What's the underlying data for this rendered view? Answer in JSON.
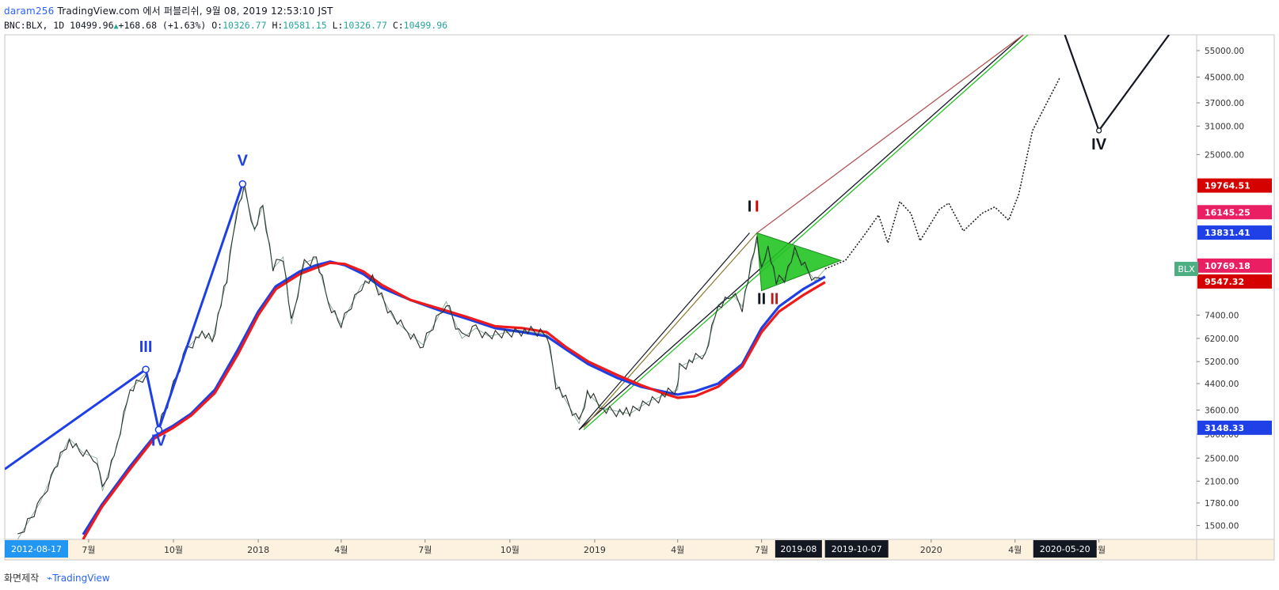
{
  "header": {
    "user": "daram256",
    "line1": "TradingView.com 에서 퍼블리쉬, 9월 08, 2019 12:53:10 JST",
    "symbol": "BNC:BLX, 1D",
    "last": "10499.96",
    "change": "+168.68 (+1.63%)",
    "o_label": "O:",
    "o": "10326.77",
    "h_label": "H:",
    "h": "10581.15",
    "l_label": "L:",
    "l": "10326.77",
    "c_label": "C:",
    "c": "10499.96"
  },
  "footer": {
    "made_with": "화면제작",
    "brand": "TradingView"
  },
  "colors": {
    "ma_red": "#ef1a1a",
    "ma_blue": "#1f3fe6",
    "wave_blue": "#1f3fe6",
    "triangle_green": "#22c422",
    "label_blue": "#1e40e6",
    "label_red": "#d50000",
    "label_pink": "#e91e63",
    "label_green": "#4caf83",
    "label_black": "#131722",
    "date_label_blue": "#2196f3"
  },
  "chart_data": {
    "type": "line",
    "title": "",
    "symbol": "BNC:BLX",
    "interval": "1D",
    "y_scale": "log",
    "ylim": [
      1350,
      62000
    ],
    "x_range": [
      "2017-04-01",
      "2020-10-15"
    ],
    "y_ticks": [
      "55000.00",
      "45000.00",
      "37000.00",
      "31000.00",
      "25000.00",
      "7400.00",
      "6200.00",
      "5200.00",
      "4400.00",
      "3600.00",
      "3000.00",
      "2500.00",
      "2100.00",
      "1780.00",
      "1500.00"
    ],
    "x_ticks": [
      {
        "date": "2017-07-01",
        "label": "7월"
      },
      {
        "date": "2017-10-01",
        "label": "10월"
      },
      {
        "date": "2018-01-01",
        "label": "2018"
      },
      {
        "date": "2018-04-01",
        "label": "4월"
      },
      {
        "date": "2018-07-01",
        "label": "7월"
      },
      {
        "date": "2018-10-01",
        "label": "10월"
      },
      {
        "date": "2019-01-01",
        "label": "2019"
      },
      {
        "date": "2019-04-01",
        "label": "4월"
      },
      {
        "date": "2019-07-01",
        "label": "7월"
      },
      {
        "date": "2020-01-01",
        "label": "2020"
      },
      {
        "date": "2020-04-01",
        "label": "4월"
      },
      {
        "date": "2020-07-01",
        "label": "7월"
      }
    ],
    "date_labels": [
      {
        "date": "2017-04-01",
        "text": "2012-08-17",
        "style": "blue"
      },
      {
        "date": "2019-08-05",
        "text": "2019-08",
        "style": "black"
      },
      {
        "date": "2019-10-07",
        "text": "2019-10-07",
        "style": "black"
      },
      {
        "date": "2020-05-20",
        "text": "2020-05-20",
        "style": "black"
      }
    ],
    "price_labels": [
      {
        "value": 19764.51,
        "text": "19764.51",
        "color": "#d50000"
      },
      {
        "value": 16145.25,
        "text": "16145.25",
        "color": "#e91e63"
      },
      {
        "value": 13831.41,
        "text": "13831.41",
        "color": "#1e40e6"
      },
      {
        "value": 10769.18,
        "text": "10769.18",
        "color": "#e91e63"
      },
      {
        "value": 9547.32,
        "text": "9547.32",
        "color": "#d50000"
      },
      {
        "value": 3148.33,
        "text": "3148.33",
        "color": "#1e40e6"
      }
    ],
    "symbol_tag": {
      "text": "BLX",
      "value": 10499.96
    },
    "price_series": [
      [
        "2017-04-15",
        1350
      ],
      [
        "2017-05-10",
        1800
      ],
      [
        "2017-05-25",
        2300
      ],
      [
        "2017-06-10",
        2900
      ],
      [
        "2017-06-25",
        2600
      ],
      [
        "2017-07-10",
        2500
      ],
      [
        "2017-07-16",
        1950
      ],
      [
        "2017-08-01",
        2750
      ],
      [
        "2017-08-15",
        4200
      ],
      [
        "2017-09-01",
        4750
      ],
      [
        "2017-09-15",
        3200
      ],
      [
        "2017-10-01",
        4300
      ],
      [
        "2017-10-15",
        5700
      ],
      [
        "2017-11-01",
        6500
      ],
      [
        "2017-11-12",
        6100
      ],
      [
        "2017-11-28",
        9700
      ],
      [
        "2017-12-08",
        16000
      ],
      [
        "2017-12-17",
        19400
      ],
      [
        "2017-12-28",
        14000
      ],
      [
        "2018-01-06",
        17000
      ],
      [
        "2018-01-17",
        10500
      ],
      [
        "2018-01-28",
        11500
      ],
      [
        "2018-02-06",
        6900
      ],
      [
        "2018-02-20",
        11000
      ],
      [
        "2018-03-05",
        11400
      ],
      [
        "2018-03-18",
        8200
      ],
      [
        "2018-04-01",
        6900
      ],
      [
        "2018-04-23",
        9300
      ],
      [
        "2018-05-05",
        9700
      ],
      [
        "2018-05-28",
        7200
      ],
      [
        "2018-06-12",
        6500
      ],
      [
        "2018-06-29",
        5900
      ],
      [
        "2018-07-24",
        8200
      ],
      [
        "2018-08-10",
        6200
      ],
      [
        "2018-08-25",
        6700
      ],
      [
        "2018-09-08",
        6300
      ],
      [
        "2018-10-10",
        6600
      ],
      [
        "2018-11-10",
        6400
      ],
      [
        "2018-11-20",
        4400
      ],
      [
        "2018-12-15",
        3250
      ],
      [
        "2018-12-24",
        4100
      ],
      [
        "2019-01-10",
        3650
      ],
      [
        "2019-02-08",
        3500
      ],
      [
        "2019-03-01",
        3850
      ],
      [
        "2019-04-01",
        4200
      ],
      [
        "2019-04-03",
        5000
      ],
      [
        "2019-05-01",
        5500
      ],
      [
        "2019-05-15",
        8000
      ],
      [
        "2019-05-30",
        8700
      ],
      [
        "2019-06-10",
        7900
      ],
      [
        "2019-06-26",
        13000
      ],
      [
        "2019-07-01",
        10500
      ],
      [
        "2019-07-08",
        12500
      ],
      [
        "2019-07-17",
        9500
      ],
      [
        "2019-07-26",
        9800
      ],
      [
        "2019-08-06",
        11900
      ],
      [
        "2019-08-28",
        9600
      ],
      [
        "2019-09-08",
        10500
      ]
    ],
    "projection": [
      [
        "2019-09-08",
        10500
      ],
      [
        "2019-09-30",
        11200
      ],
      [
        "2019-10-20",
        13500
      ],
      [
        "2019-11-05",
        15800
      ],
      [
        "2019-11-15",
        12800
      ],
      [
        "2019-11-28",
        17500
      ],
      [
        "2019-12-10",
        16000
      ],
      [
        "2019-12-20",
        13000
      ],
      [
        "2020-01-10",
        16500
      ],
      [
        "2020-01-20",
        17300
      ],
      [
        "2020-02-05",
        14000
      ],
      [
        "2020-02-25",
        16000
      ],
      [
        "2020-03-10",
        16800
      ],
      [
        "2020-03-25",
        15200
      ],
      [
        "2020-04-05",
        18500
      ],
      [
        "2020-04-20",
        30000
      ],
      [
        "2020-05-20",
        45000
      ]
    ],
    "series": [
      {
        "color": "#1f3fe6",
        "values": [
          [
            "2017-06-25",
            1400
          ],
          [
            "2017-07-15",
            1750
          ],
          [
            "2017-08-15",
            2350
          ],
          [
            "2017-09-10",
            2950
          ],
          [
            "2017-10-01",
            3200
          ],
          [
            "2017-10-20",
            3500
          ],
          [
            "2017-11-15",
            4200
          ],
          [
            "2017-12-10",
            5700
          ],
          [
            "2018-01-01",
            7600
          ],
          [
            "2018-01-20",
            9200
          ],
          [
            "2018-02-15",
            10300
          ],
          [
            "2018-03-05",
            10800
          ],
          [
            "2018-03-20",
            11100
          ],
          [
            "2018-04-05",
            10800
          ],
          [
            "2018-04-25",
            10100
          ],
          [
            "2018-05-15",
            9100
          ],
          [
            "2018-06-15",
            8300
          ],
          [
            "2018-07-15",
            7700
          ],
          [
            "2018-08-15",
            7200
          ],
          [
            "2018-09-15",
            6700
          ],
          [
            "2018-10-15",
            6500
          ],
          [
            "2018-11-10",
            6300
          ],
          [
            "2018-12-01",
            5700
          ],
          [
            "2018-12-25",
            5100
          ],
          [
            "2019-01-25",
            4600
          ],
          [
            "2019-02-20",
            4300
          ],
          [
            "2019-03-15",
            4150
          ],
          [
            "2019-04-01",
            4050
          ],
          [
            "2019-04-20",
            4150
          ],
          [
            "2019-05-15",
            4400
          ],
          [
            "2019-06-10",
            5100
          ],
          [
            "2019-07-01",
            6700
          ],
          [
            "2019-07-20",
            7900
          ],
          [
            "2019-08-15",
            9000
          ],
          [
            "2019-09-08",
            9900
          ]
        ]
      },
      {
        "color": "#ef1a1a",
        "values": [
          [
            "2017-06-25",
            1350
          ],
          [
            "2017-07-15",
            1720
          ],
          [
            "2017-08-15",
            2300
          ],
          [
            "2017-09-10",
            2900
          ],
          [
            "2017-10-01",
            3150
          ],
          [
            "2017-10-20",
            3450
          ],
          [
            "2017-11-15",
            4100
          ],
          [
            "2017-12-10",
            5500
          ],
          [
            "2018-01-01",
            7400
          ],
          [
            "2018-01-20",
            9000
          ],
          [
            "2018-02-15",
            10100
          ],
          [
            "2018-03-05",
            10600
          ],
          [
            "2018-03-20",
            11000
          ],
          [
            "2018-04-05",
            10900
          ],
          [
            "2018-04-25",
            10300
          ],
          [
            "2018-05-15",
            9300
          ],
          [
            "2018-06-15",
            8300
          ],
          [
            "2018-07-15",
            7800
          ],
          [
            "2018-08-15",
            7300
          ],
          [
            "2018-09-15",
            6800
          ],
          [
            "2018-10-15",
            6700
          ],
          [
            "2018-11-10",
            6500
          ],
          [
            "2018-12-01",
            5800
          ],
          [
            "2018-12-25",
            5200
          ],
          [
            "2019-01-25",
            4700
          ],
          [
            "2019-02-20",
            4350
          ],
          [
            "2019-03-15",
            4100
          ],
          [
            "2019-04-01",
            3950
          ],
          [
            "2019-04-20",
            4000
          ],
          [
            "2019-05-15",
            4300
          ],
          [
            "2019-06-10",
            5000
          ],
          [
            "2019-07-01",
            6500
          ],
          [
            "2019-07-20",
            7600
          ],
          [
            "2019-08-15",
            8600
          ],
          [
            "2019-09-08",
            9500
          ]
        ]
      }
    ],
    "wave_blue_points": [
      [
        "2017-04-01",
        2300
      ],
      [
        "2017-09-01",
        4900
      ],
      [
        "2017-09-15",
        3100
      ],
      [
        "2017-12-15",
        20000
      ]
    ],
    "channel_lines": [
      {
        "color": "#131722",
        "from": [
          "2018-12-15",
          3100
        ],
        "to": [
          "2020-04-10",
          62000
        ]
      },
      {
        "color": "#b45454",
        "from": [
          "2019-06-26",
          13800
        ],
        "to": [
          "2020-04-10",
          62000
        ]
      },
      {
        "color": "#22c422",
        "from": [
          "2018-12-20",
          3100
        ],
        "to": [
          "2020-04-15",
          62000
        ]
      }
    ],
    "impulse_lines": [
      {
        "color": "#131722",
        "from": [
          "2018-12-15",
          3100
        ],
        "to": [
          "2019-06-18",
          13800
        ]
      },
      {
        "color": "#8a7a2a",
        "from": [
          "2018-12-20",
          3150
        ],
        "to": [
          "2019-06-26",
          13800
        ]
      }
    ],
    "wave_iv_future": [
      [
        "2020-05-25",
        62000
      ],
      [
        "2020-07-01",
        30000
      ],
      [
        "2020-09-15",
        62000
      ]
    ],
    "triangle": [
      [
        "2019-06-26",
        13800
      ],
      [
        "2019-07-01",
        8900
      ],
      [
        "2019-09-25",
        11200
      ]
    ],
    "wave_labels": [
      {
        "text": "III",
        "date": "2017-09-01",
        "value": 5600,
        "color": "#1e40e6"
      },
      {
        "text": "IV",
        "date": "2017-09-15",
        "value": 2750,
        "color": "#1e40e6"
      },
      {
        "text": "V",
        "date": "2017-12-15",
        "value": 23000,
        "color": "#1e40e6"
      },
      {
        "text": "I",
        "date": "2019-06-18",
        "value": 16200,
        "color": "#131722"
      },
      {
        "text": "I",
        "date": "2019-06-26",
        "value": 16200,
        "color": "#d50000"
      },
      {
        "text": "II",
        "date": "2019-07-01",
        "value": 8050,
        "color": "#131722"
      },
      {
        "text": "II",
        "date": "2019-07-15",
        "value": 8050,
        "color": "#b71c1c"
      },
      {
        "text": "IV",
        "date": "2020-07-01",
        "value": 26000,
        "color": "#131722"
      }
    ]
  }
}
